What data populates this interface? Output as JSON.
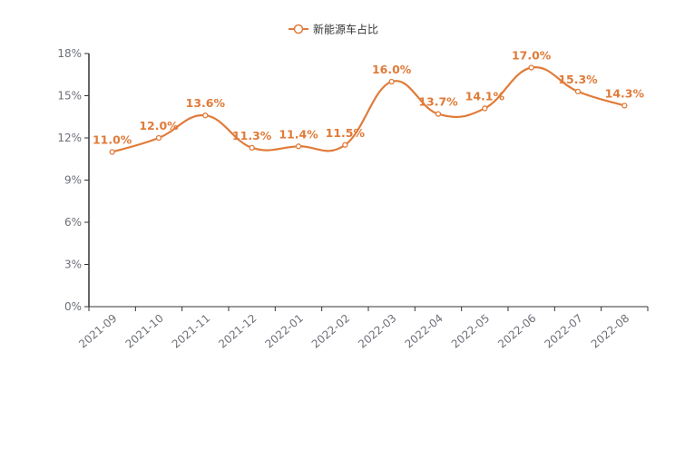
{
  "chart_data": {
    "type": "line",
    "title": "",
    "xlabel": "",
    "ylabel": "",
    "legend": {
      "entries": [
        "新能源车占比"
      ],
      "placement": "top-center"
    },
    "categories": [
      "2021-09",
      "2021-10",
      "2021-11",
      "2021-12",
      "2022-01",
      "2022-02",
      "2022-03",
      "2022-04",
      "2022-05",
      "2022-06",
      "2022-07",
      "2022-08"
    ],
    "series": [
      {
        "name": "新能源车占比",
        "color": "#e07b39",
        "values": [
          11.0,
          12.0,
          13.6,
          11.3,
          11.4,
          11.5,
          16.0,
          13.7,
          14.1,
          17.0,
          15.3,
          14.3
        ],
        "labels": [
          "11.0%",
          "12.0%",
          "13.6%",
          "11.3%",
          "11.4%",
          "11.5%",
          "16.0%",
          "13.7%",
          "14.1%",
          "17.0%",
          "15.3%",
          "14.3%"
        ]
      }
    ],
    "ylim": [
      0,
      18
    ],
    "yticks": [
      0,
      3,
      6,
      9,
      12,
      15,
      18
    ],
    "ytick_labels": [
      "0%",
      "3%",
      "6%",
      "9%",
      "12%",
      "15%",
      "18%"
    ],
    "grid": false,
    "smooth": true
  }
}
